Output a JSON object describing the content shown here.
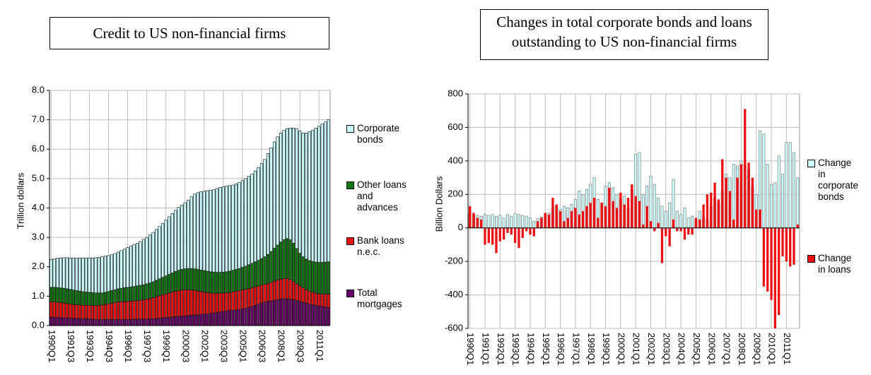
{
  "chart_data": [
    {
      "type": "bar",
      "stacked": true,
      "title": "Credit to US non-financial firms",
      "y_label": "Trillion dollars",
      "categories": [
        "1990Q1",
        null,
        null,
        null,
        null,
        null,
        "1991Q3",
        null,
        null,
        null,
        null,
        null,
        "1993Q1",
        null,
        null,
        null,
        null,
        null,
        "1994Q3",
        null,
        null,
        null,
        null,
        null,
        "1996Q1",
        null,
        null,
        null,
        null,
        null,
        "1997Q3",
        null,
        null,
        null,
        null,
        null,
        "1999Q1",
        null,
        null,
        null,
        null,
        null,
        "2000Q3",
        null,
        null,
        null,
        null,
        null,
        "2002Q1",
        null,
        null,
        null,
        null,
        null,
        "2003Q3",
        null,
        null,
        null,
        null,
        null,
        "2005Q1",
        null,
        null,
        null,
        null,
        null,
        "2006Q3",
        null,
        null,
        null,
        null,
        null,
        "2008Q1",
        null,
        null,
        null,
        null,
        null,
        "2009Q3",
        null,
        null,
        null,
        null,
        null,
        "2011Q1",
        null,
        null,
        null
      ],
      "ylim": [
        0,
        8
      ],
      "yticks": [
        {
          "value": 0,
          "label": "0.0"
        },
        {
          "value": 1,
          "label": "1.0"
        },
        {
          "value": 2,
          "label": "2.0"
        },
        {
          "value": 3,
          "label": "3.0"
        },
        {
          "value": 4,
          "label": "4.0"
        },
        {
          "value": 5,
          "label": "5.0"
        },
        {
          "value": 6,
          "label": "6.0"
        },
        {
          "value": 7,
          "label": "7.0"
        },
        {
          "value": 8,
          "label": "8.0"
        }
      ],
      "grid": true,
      "series": [
        {
          "name": "Total mortgages",
          "color": "#660066",
          "values": [
            0.28,
            0.28,
            0.27,
            0.27,
            0.26,
            0.26,
            0.25,
            0.25,
            0.24,
            0.24,
            0.23,
            0.23,
            0.22,
            0.22,
            0.21,
            0.21,
            0.21,
            0.21,
            0.21,
            0.21,
            0.21,
            0.21,
            0.21,
            0.21,
            0.21,
            0.21,
            0.22,
            0.22,
            0.22,
            0.22,
            0.22,
            0.23,
            0.23,
            0.24,
            0.25,
            0.26,
            0.27,
            0.28,
            0.29,
            0.3,
            0.31,
            0.32,
            0.33,
            0.34,
            0.35,
            0.36,
            0.37,
            0.38,
            0.39,
            0.4,
            0.41,
            0.42,
            0.44,
            0.46,
            0.48,
            0.5,
            0.51,
            0.52,
            0.53,
            0.55,
            0.57,
            0.59,
            0.62,
            0.65,
            0.69,
            0.73,
            0.77,
            0.8,
            0.82,
            0.84,
            0.86,
            0.88,
            0.9,
            0.91,
            0.91,
            0.9,
            0.88,
            0.85,
            0.82,
            0.79,
            0.76,
            0.73,
            0.71,
            0.69,
            0.67,
            0.65,
            0.63,
            0.61
          ]
        },
        {
          "name": "Bank loans n.e.c.",
          "color": "#ee1111",
          "values": [
            0.52,
            0.52,
            0.52,
            0.51,
            0.51,
            0.49,
            0.48,
            0.47,
            0.47,
            0.46,
            0.46,
            0.46,
            0.46,
            0.46,
            0.47,
            0.48,
            0.49,
            0.51,
            0.53,
            0.55,
            0.57,
            0.59,
            0.6,
            0.61,
            0.61,
            0.62,
            0.62,
            0.63,
            0.64,
            0.66,
            0.68,
            0.69,
            0.72,
            0.74,
            0.77,
            0.79,
            0.81,
            0.83,
            0.85,
            0.87,
            0.88,
            0.89,
            0.89,
            0.88,
            0.86,
            0.84,
            0.81,
            0.78,
            0.75,
            0.72,
            0.7,
            0.68,
            0.66,
            0.64,
            0.63,
            0.62,
            0.62,
            0.63,
            0.64,
            0.64,
            0.64,
            0.64,
            0.64,
            0.64,
            0.63,
            0.62,
            0.61,
            0.6,
            0.61,
            0.63,
            0.65,
            0.67,
            0.68,
            0.69,
            0.69,
            0.67,
            0.62,
            0.57,
            0.53,
            0.49,
            0.46,
            0.44,
            0.42,
            0.41,
            0.41,
            0.42,
            0.44,
            0.46
          ]
        },
        {
          "name": "Other loans and advances",
          "color": "#117711",
          "values": [
            0.5,
            0.5,
            0.5,
            0.5,
            0.5,
            0.5,
            0.5,
            0.49,
            0.48,
            0.47,
            0.46,
            0.45,
            0.45,
            0.44,
            0.43,
            0.42,
            0.41,
            0.41,
            0.42,
            0.43,
            0.44,
            0.45,
            0.46,
            0.47,
            0.48,
            0.48,
            0.49,
            0.5,
            0.51,
            0.51,
            0.52,
            0.53,
            0.54,
            0.56,
            0.57,
            0.59,
            0.61,
            0.63,
            0.65,
            0.67,
            0.69,
            0.7,
            0.71,
            0.72,
            0.73,
            0.73,
            0.73,
            0.73,
            0.73,
            0.73,
            0.72,
            0.72,
            0.71,
            0.71,
            0.71,
            0.71,
            0.72,
            0.73,
            0.74,
            0.75,
            0.77,
            0.79,
            0.81,
            0.83,
            0.85,
            0.87,
            0.9,
            0.94,
            0.99,
            1.05,
            1.12,
            1.19,
            1.26,
            1.32,
            1.36,
            1.35,
            1.3,
            1.2,
            1.11,
            1.06,
            1.04,
            1.04,
            1.05,
            1.06,
            1.07,
            1.08,
            1.09,
            1.1
          ]
        },
        {
          "name": "Corporate bonds",
          "color": "#ccffff",
          "values": [
            0.95,
            0.97,
            1.0,
            1.02,
            1.04,
            1.06,
            1.07,
            1.09,
            1.11,
            1.13,
            1.15,
            1.16,
            1.17,
            1.18,
            1.2,
            1.21,
            1.23,
            1.23,
            1.22,
            1.22,
            1.23,
            1.25,
            1.28,
            1.31,
            1.35,
            1.39,
            1.42,
            1.45,
            1.49,
            1.54,
            1.58,
            1.63,
            1.68,
            1.73,
            1.78,
            1.84,
            1.9,
            1.96,
            2.02,
            2.08,
            2.14,
            2.19,
            2.25,
            2.32,
            2.44,
            2.54,
            2.61,
            2.66,
            2.7,
            2.74,
            2.77,
            2.8,
            2.85,
            2.89,
            2.9,
            2.91,
            2.91,
            2.9,
            2.91,
            2.93,
            2.95,
            2.98,
            3.01,
            3.04,
            3.09,
            3.16,
            3.23,
            3.31,
            3.43,
            3.53,
            3.62,
            3.68,
            3.71,
            3.73,
            3.74,
            3.8,
            3.92,
            4.08,
            4.16,
            4.21,
            4.29,
            4.39,
            4.47,
            4.56,
            4.63,
            4.71,
            4.77,
            4.83
          ]
        }
      ]
    },
    {
      "type": "bar",
      "stacked": false,
      "title": "Changes in total corporate bonds and loans outstanding to US non-financial firms",
      "y_label": "Billion Dollars",
      "categories": [
        "1990Q1",
        null,
        null,
        null,
        "1991Q1",
        null,
        null,
        null,
        "1992Q1",
        null,
        null,
        null,
        "1993Q1",
        null,
        null,
        null,
        "1994Q1",
        null,
        null,
        null,
        "1995Q1",
        null,
        null,
        null,
        "1996Q1",
        null,
        null,
        null,
        "1997Q1",
        null,
        null,
        null,
        "1998Q1",
        null,
        null,
        null,
        "1999Q1",
        null,
        null,
        null,
        "2000Q1",
        null,
        null,
        null,
        "2001Q1",
        null,
        null,
        null,
        "2002Q1",
        null,
        null,
        null,
        "2003Q1",
        null,
        null,
        null,
        "2004Q1",
        null,
        null,
        null,
        "2005Q1",
        null,
        null,
        null,
        "2006Q1",
        null,
        null,
        null,
        "2007Q1",
        null,
        null,
        null,
        "2008Q1",
        null,
        null,
        null,
        "2009Q1",
        null,
        null,
        null,
        "2010Q1",
        null,
        null,
        null,
        "2011Q1",
        null,
        null,
        null
      ],
      "ylim": [
        -600,
        800
      ],
      "yticks": [
        -600,
        -400,
        -200,
        0,
        200,
        400,
        600,
        800
      ],
      "grid": true,
      "series": [
        {
          "name": "Change in corporate bonds",
          "color": "#ccffff",
          "values": [
            90,
            80,
            75,
            70,
            80,
            75,
            80,
            70,
            75,
            60,
            80,
            70,
            85,
            80,
            75,
            70,
            60,
            40,
            55,
            65,
            80,
            90,
            120,
            130,
            110,
            130,
            120,
            140,
            170,
            220,
            200,
            230,
            260,
            300,
            170,
            150,
            250,
            270,
            240,
            200,
            170,
            190,
            120,
            230,
            440,
            450,
            200,
            250,
            310,
            260,
            180,
            130,
            100,
            150,
            290,
            100,
            80,
            120,
            60,
            70,
            50,
            100,
            60,
            50,
            130,
            180,
            150,
            220,
            320,
            300,
            380,
            370,
            400,
            380,
            350,
            250,
            200,
            580,
            560,
            380,
            260,
            270,
            430,
            320,
            510,
            510,
            450,
            300
          ]
        },
        {
          "name": "Change in loans",
          "color": "#ee1111",
          "values": [
            130,
            90,
            60,
            50,
            -100,
            -90,
            -100,
            -150,
            -80,
            -70,
            -30,
            -40,
            -90,
            -120,
            -60,
            -20,
            -40,
            -50,
            40,
            60,
            90,
            80,
            180,
            140,
            100,
            40,
            60,
            100,
            120,
            80,
            100,
            130,
            150,
            180,
            60,
            150,
            130,
            240,
            160,
            120,
            210,
            140,
            180,
            260,
            190,
            160,
            20,
            130,
            40,
            -20,
            30,
            -210,
            -50,
            -110,
            50,
            -20,
            -20,
            -70,
            -40,
            -40,
            60,
            50,
            140,
            200,
            210,
            270,
            170,
            410,
            300,
            220,
            50,
            300,
            380,
            710,
            390,
            300,
            110,
            110,
            -350,
            -380,
            -430,
            -600,
            -520,
            -170,
            -200,
            -230,
            -220,
            20
          ]
        }
      ]
    }
  ]
}
